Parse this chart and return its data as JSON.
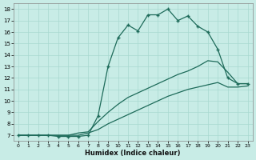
{
  "xlabel": "Humidex (Indice chaleur)",
  "bg_color": "#c8ece6",
  "line_color": "#1e6b5a",
  "grid_color": "#a8d8d0",
  "xlim": [
    -0.5,
    23.5
  ],
  "ylim": [
    6.5,
    18.5
  ],
  "line1_x": [
    0,
    1,
    2,
    3,
    4,
    5,
    6,
    7,
    8,
    9,
    10,
    11,
    12,
    13,
    14,
    15,
    16,
    17,
    18,
    19,
    20,
    21,
    22,
    23
  ],
  "line1_y": [
    7,
    7,
    7,
    7,
    7,
    7,
    7,
    7.2,
    7.5,
    8,
    8.4,
    8.8,
    9.2,
    9.6,
    10,
    10.4,
    10.7,
    11.0,
    11.2,
    11.4,
    11.6,
    11.2,
    11.2,
    11.3
  ],
  "line2_x": [
    0,
    1,
    2,
    3,
    4,
    5,
    6,
    7,
    8,
    9,
    10,
    11,
    12,
    13,
    14,
    15,
    16,
    17,
    18,
    19,
    20,
    21,
    22,
    23
  ],
  "line2_y": [
    7,
    7,
    7,
    7,
    7,
    7,
    7.2,
    7.3,
    8.2,
    9.0,
    9.7,
    10.3,
    10.7,
    11.1,
    11.5,
    11.9,
    12.3,
    12.6,
    13.0,
    13.5,
    13.4,
    12.5,
    11.5,
    11.5
  ],
  "line3_x": [
    0,
    1,
    2,
    3,
    4,
    5,
    6,
    7,
    8,
    9,
    10,
    11,
    12,
    13,
    14,
    15,
    16,
    17,
    18,
    19,
    20,
    21,
    22,
    23
  ],
  "line3_y": [
    7,
    7,
    7,
    7,
    6.9,
    6.9,
    6.9,
    7.0,
    8.7,
    13.0,
    15.5,
    16.6,
    16.1,
    17.5,
    17.5,
    18.0,
    17.0,
    17.4,
    16.5,
    16.0,
    14.5,
    12.0,
    11.5,
    11.5
  ]
}
